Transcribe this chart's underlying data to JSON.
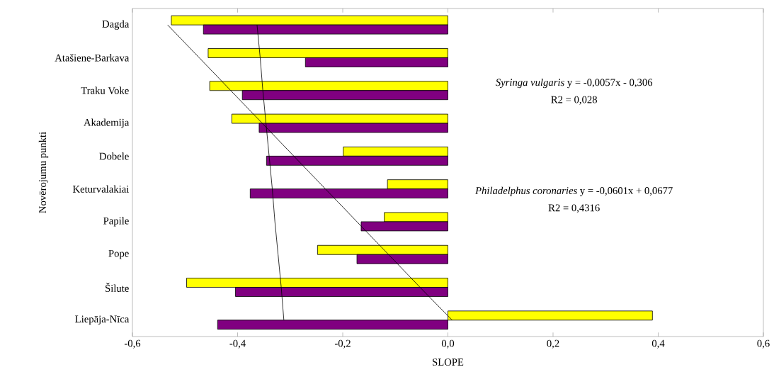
{
  "chart_data": {
    "type": "bar",
    "orientation": "horizontal",
    "xlabel": "SLOPE",
    "ylabel": "Novērojumu punkti",
    "categories": [
      "Dagda",
      "Atašiene-Barkava",
      "Traku Voke",
      "Akademija",
      "Dobele",
      "Keturvalakiai",
      "Papile",
      "Pope",
      "Šilute",
      "Liepāja-Nīca"
    ],
    "xlim": [
      -0.6,
      0.6
    ],
    "xticks": [
      {
        "value": -0.6,
        "label": "-0,6"
      },
      {
        "value": -0.4,
        "label": "-0,4"
      },
      {
        "value": -0.2,
        "label": "-0,2"
      },
      {
        "value": 0,
        "label": "0,0"
      },
      {
        "value": 0.2,
        "label": "0,2"
      },
      {
        "value": 0.4,
        "label": "0,4"
      },
      {
        "value": 0.6,
        "label": "0,6"
      }
    ],
    "series": [
      {
        "color": "#ffff00",
        "values": [
          -0.526,
          -0.456,
          -0.453,
          -0.411,
          -0.199,
          -0.115,
          -0.121,
          -0.248,
          -0.497,
          0.389
        ]
      },
      {
        "color": "#800080",
        "values": [
          -0.465,
          -0.271,
          -0.391,
          -0.359,
          -0.345,
          -0.376,
          -0.165,
          -0.173,
          -0.404,
          -0.438
        ]
      },
      {
        "type": "line",
        "color": "#000000",
        "values": [
          -0.363,
          -0.357,
          -0.352,
          -0.346,
          -0.34,
          -0.334,
          -0.329,
          -0.323,
          -0.317,
          -0.312
        ]
      },
      {
        "type": "line",
        "color": "#000000",
        "values": [
          -0.533,
          -0.473,
          -0.413,
          -0.353,
          -0.293,
          -0.233,
          -0.173,
          -0.113,
          -0.053,
          0.008
        ]
      }
    ],
    "annotations": [
      "*Syringa vulgaris* y = -0,0057x - 0,306",
      "R2 = 0,028",
      "*Philadelphus coronaries* y = -0,0601x + 0,0677",
      "R2 = 0,4316"
    ]
  }
}
